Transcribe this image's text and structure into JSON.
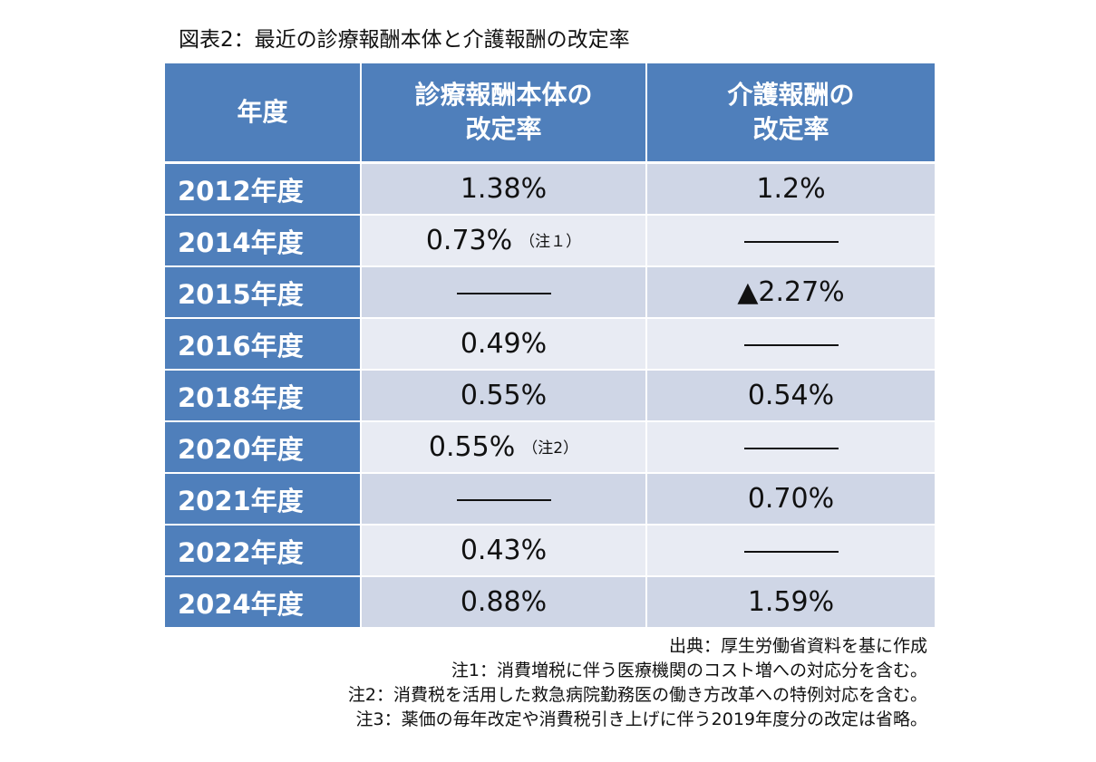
{
  "title": "図表2：最近の診療報酬本体と介護報酬の改定率",
  "table": {
    "headers": {
      "year": "年度",
      "medical_line1": "診療報酬本体の",
      "medical_line2": "改定率",
      "care_line1": "介護報酬の",
      "care_line2": "改定率"
    },
    "rows": [
      {
        "year": "2012年度",
        "medical": "1.38%",
        "medical_note": "",
        "care": "1.2%"
      },
      {
        "year": "2014年度",
        "medical": "0.73%",
        "medical_note": "（注１）",
        "care": "―――"
      },
      {
        "year": "2015年度",
        "medical": "―――",
        "medical_note": "",
        "care": "▲2.27%"
      },
      {
        "year": "2016年度",
        "medical": "0.49%",
        "medical_note": "",
        "care": "―――"
      },
      {
        "year": "2018年度",
        "medical": "0.55%",
        "medical_note": "",
        "care": "0.54%"
      },
      {
        "year": "2020年度",
        "medical": "0.55%",
        "medical_note": "（注2）",
        "care": "―――"
      },
      {
        "year": "2021年度",
        "medical": "―――",
        "medical_note": "",
        "care": "0.70%"
      },
      {
        "year": "2022年度",
        "medical": "0.43%",
        "medical_note": "",
        "care": "―――"
      },
      {
        "year": "2024年度",
        "medical": "0.88%",
        "medical_note": "",
        "care": "1.59%"
      }
    ]
  },
  "colors": {
    "header_blue": "#4f7fbb",
    "row_dark": "#cfd6e6",
    "row_light": "#e8ebf3"
  },
  "footnotes": [
    "出典：厚生労働省資料を基に作成",
    "注1：消費増税に伴う医療機関のコスト増への対応分を含む。",
    "注2：消費税を活用した救急病院勤務医の働き方改革への特例対応を含む。",
    "注3：薬価の毎年改定や消費税引き上げに伴う2019年度分の改定は省略。"
  ]
}
